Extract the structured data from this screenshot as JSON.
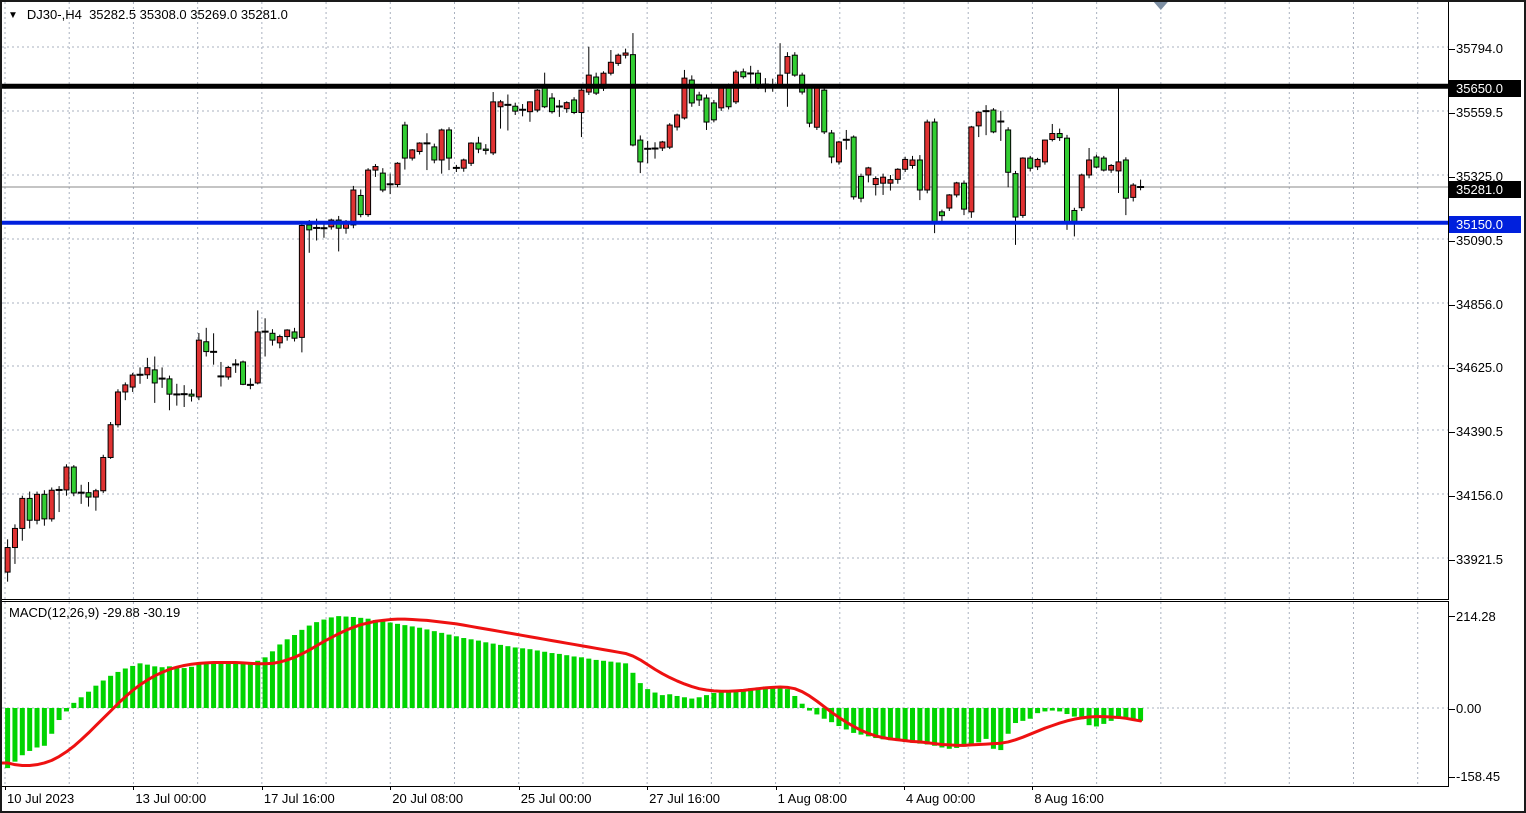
{
  "header": {
    "symbol_period": "DJ30-,H4",
    "ohlc": "35282.5 35308.0 35269.0 35281.0"
  },
  "indicator": {
    "label": "MACD(12,26,9) -29.88 -30.19"
  },
  "axis": {
    "price_labels": [
      "35794.0",
      "35559.5",
      "35325.0",
      "35090.5",
      "34856.0",
      "34625.0",
      "34390.5",
      "34156.0",
      "33921.5"
    ],
    "macd_labels": [
      "214.28",
      "0.00",
      "-158.45"
    ],
    "time_labels": [
      "10 Jul 2023",
      "13 Jul 00:00",
      "17 Jul 16:00",
      "20 Jul 08:00",
      "25 Jul 00:00",
      "27 Jul 16:00",
      "1 Aug 08:00",
      "4 Aug 00:00",
      "8 Aug 16:00"
    ]
  },
  "levels": {
    "resistance": {
      "value": "35650.0",
      "price": 35650,
      "color": "#000000"
    },
    "support": {
      "value": "35150.0",
      "price": 35150,
      "color": "#0020dd"
    },
    "current": {
      "value": "35281.0",
      "price": 35281,
      "color": "#888888"
    }
  },
  "chart_data": {
    "type": "candlestick",
    "title": "DJ30-,H4",
    "timeframe": "H4",
    "ylim": [
      33775,
      35864
    ],
    "grid": true,
    "x_labels": [
      "10 Jul 2023",
      "13 Jul 00:00",
      "17 Jul 16:00",
      "20 Jul 08:00",
      "25 Jul 00:00",
      "27 Jul 16:00",
      "1 Aug 08:00",
      "4 Aug 00:00",
      "8 Aug 16:00"
    ],
    "candles": [
      [
        33870,
        33990,
        33835,
        33960
      ],
      [
        33960,
        34045,
        33900,
        34030
      ],
      [
        34030,
        34150,
        33985,
        34140
      ],
      [
        34140,
        34165,
        34030,
        34060
      ],
      [
        34060,
        34165,
        34045,
        34155
      ],
      [
        34155,
        34170,
        34040,
        34065
      ],
      [
        34065,
        34180,
        34055,
        34170
      ],
      [
        34170,
        34185,
        34090,
        34171
      ],
      [
        34171,
        34265,
        34150,
        34255
      ],
      [
        34255,
        34262,
        34148,
        34160
      ],
      [
        34160,
        34190,
        34120,
        34161
      ],
      [
        34161,
        34200,
        34110,
        34145
      ],
      [
        34145,
        34175,
        34095,
        34168
      ],
      [
        34168,
        34300,
        34160,
        34290
      ],
      [
        34290,
        34420,
        34285,
        34410
      ],
      [
        34410,
        34540,
        34400,
        34530
      ],
      [
        34530,
        34565,
        34500,
        34556
      ],
      [
        34548,
        34600,
        34530,
        34592
      ],
      [
        34594,
        34620,
        34560,
        34593
      ],
      [
        34593,
        34655,
        34578,
        34619
      ],
      [
        34611,
        34660,
        34490,
        34563
      ],
      [
        34580,
        34620,
        34545,
        34579
      ],
      [
        34578,
        34590,
        34463,
        34522
      ],
      [
        34522,
        34560,
        34480,
        34521
      ],
      [
        34521,
        34555,
        34475,
        34522
      ],
      [
        34522,
        34540,
        34495,
        34515
      ],
      [
        34512,
        34746,
        34500,
        34720
      ],
      [
        34714,
        34765,
        34660,
        34678
      ],
      [
        34678,
        34745,
        34630,
        34677
      ],
      [
        34585,
        34640,
        34550,
        34587
      ],
      [
        34585,
        34625,
        34575,
        34620
      ],
      [
        34630,
        34650,
        34600,
        34631
      ],
      [
        34640,
        34645,
        34555,
        34558
      ],
      [
        34558,
        34580,
        34540,
        34556
      ],
      [
        34563,
        34829,
        34558,
        34750
      ],
      [
        34750,
        34800,
        34660,
        34751
      ],
      [
        34745,
        34760,
        34700,
        34720
      ],
      [
        34710,
        34740,
        34690,
        34733
      ],
      [
        34733,
        34760,
        34718,
        34757
      ],
      [
        34750,
        34765,
        34715,
        34727
      ],
      [
        34730,
        35155,
        34675,
        35140
      ],
      [
        35142,
        35160,
        35040,
        35124
      ],
      [
        35130,
        35165,
        35085,
        35131
      ],
      [
        35131,
        35155,
        35095,
        35130
      ],
      [
        35135,
        35165,
        35125,
        35160
      ],
      [
        35160,
        35175,
        35045,
        35130
      ],
      [
        35130,
        35160,
        35110,
        35155
      ],
      [
        35142,
        35285,
        35130,
        35270
      ],
      [
        35250,
        35272,
        35170,
        35180
      ],
      [
        35180,
        35350,
        35172,
        35343
      ],
      [
        35343,
        35365,
        35318,
        35356
      ],
      [
        35332,
        35350,
        35262,
        35270
      ],
      [
        35290,
        35330,
        35255,
        35291
      ],
      [
        35290,
        35372,
        35280,
        35368
      ],
      [
        35508,
        35520,
        35345,
        35387
      ],
      [
        35387,
        35420,
        35378,
        35417
      ],
      [
        35411,
        35445,
        35400,
        35442
      ],
      [
        35440,
        35478,
        35343,
        35441
      ],
      [
        35428,
        35440,
        35368,
        35380
      ],
      [
        35380,
        35495,
        35330,
        35490
      ],
      [
        35490,
        35500,
        35343,
        35387
      ],
      [
        35350,
        35362,
        35336,
        35351
      ],
      [
        35350,
        35385,
        35337,
        35380
      ],
      [
        35368,
        35445,
        35358,
        35442
      ],
      [
        35442,
        35465,
        35405,
        35420
      ],
      [
        35420,
        35438,
        35400,
        35415
      ],
      [
        35406,
        35629,
        35398,
        35593
      ],
      [
        35575,
        35600,
        35495,
        35593
      ],
      [
        35581,
        35620,
        35488,
        35582
      ],
      [
        35577,
        35590,
        35545,
        35559
      ],
      [
        35563,
        35585,
        35540,
        35564
      ],
      [
        35557,
        35595,
        35520,
        35593
      ],
      [
        35563,
        35640,
        35555,
        35636
      ],
      [
        35645,
        35700,
        35570,
        35575
      ],
      [
        35607,
        35625,
        35550,
        35557
      ],
      [
        35575,
        35600,
        35538,
        35576
      ],
      [
        35568,
        35595,
        35553,
        35590
      ],
      [
        35600,
        35610,
        35548,
        35554
      ],
      [
        35554,
        35645,
        35464,
        35636
      ],
      [
        35629,
        35795,
        35618,
        35691
      ],
      [
        35684,
        35700,
        35618,
        35625
      ],
      [
        35643,
        35705,
        35633,
        35698
      ],
      [
        35698,
        35783,
        35690,
        35738
      ],
      [
        35734,
        35770,
        35725,
        35764
      ],
      [
        35764,
        35788,
        35752,
        35772
      ],
      [
        35766,
        35845,
        35430,
        35435
      ],
      [
        35453,
        35470,
        35332,
        35373
      ],
      [
        35420,
        35450,
        35368,
        35421
      ],
      [
        35420,
        35445,
        35385,
        35422
      ],
      [
        35424,
        35450,
        35413,
        35446
      ],
      [
        35427,
        35515,
        35420,
        35508
      ],
      [
        35501,
        35550,
        35488,
        35545
      ],
      [
        35534,
        35710,
        35528,
        35680
      ],
      [
        35673,
        35690,
        35575,
        35589
      ],
      [
        35618,
        35630,
        35578,
        35600
      ],
      [
        35607,
        35620,
        35490,
        35519
      ],
      [
        35589,
        35600,
        35518,
        35527
      ],
      [
        35571,
        35650,
        35560,
        35644
      ],
      [
        35648,
        35660,
        35565,
        35575
      ],
      [
        35593,
        35710,
        35585,
        35702
      ],
      [
        35703,
        35715,
        35678,
        35685
      ],
      [
        35696,
        35725,
        35660,
        35697
      ],
      [
        35698,
        35710,
        35640,
        35648
      ],
      [
        35655,
        35680,
        35628,
        35656
      ],
      [
        35655,
        35678,
        35630,
        35654
      ],
      [
        35655,
        35808,
        35648,
        35691
      ],
      [
        35698,
        35775,
        35575,
        35759
      ],
      [
        35764,
        35775,
        35685,
        35691
      ],
      [
        35691,
        35700,
        35620,
        35629
      ],
      [
        35644,
        35650,
        35500,
        35515
      ],
      [
        35500,
        35655,
        35490,
        35644
      ],
      [
        35636,
        35645,
        35475,
        35483
      ],
      [
        35479,
        35490,
        35368,
        35391
      ],
      [
        35373,
        35450,
        35363,
        35446
      ],
      [
        35453,
        35490,
        35418,
        35454
      ],
      [
        35464,
        35470,
        35235,
        35245
      ],
      [
        35320,
        35330,
        35225,
        35240
      ],
      [
        35325,
        35355,
        35298,
        35351
      ],
      [
        35290,
        35320,
        35250,
        35312
      ],
      [
        35295,
        35330,
        35252,
        35317
      ],
      [
        35295,
        35325,
        35268,
        35308
      ],
      [
        35309,
        35350,
        35293,
        35346
      ],
      [
        35346,
        35392,
        35336,
        35382
      ],
      [
        35360,
        35395,
        35348,
        35380
      ],
      [
        35380,
        35398,
        35233,
        35270
      ],
      [
        35270,
        35528,
        35258,
        35519
      ],
      [
        35519,
        35532,
        35112,
        35153
      ],
      [
        35190,
        35198,
        35150,
        35176
      ],
      [
        35204,
        35255,
        35193,
        35252
      ],
      [
        35252,
        35300,
        35243,
        35296
      ],
      [
        35295,
        35305,
        35178,
        35200
      ],
      [
        35190,
        35505,
        35168,
        35501
      ],
      [
        35505,
        35558,
        35464,
        35555
      ],
      [
        35560,
        35581,
        35471,
        35559
      ],
      [
        35563,
        35570,
        35478,
        35483
      ],
      [
        35520,
        35560,
        35450,
        35521
      ],
      [
        35490,
        35500,
        35280,
        35335
      ],
      [
        35330,
        35340,
        35069,
        35171
      ],
      [
        35177,
        35390,
        35168,
        35387
      ],
      [
        35387,
        35395,
        35338,
        35350
      ],
      [
        35355,
        35388,
        35343,
        35382
      ],
      [
        35373,
        35455,
        35363,
        35453
      ],
      [
        35455,
        35512,
        35448,
        35477
      ],
      [
        35477,
        35495,
        35450,
        35462
      ],
      [
        35460,
        35472,
        35124,
        35148
      ],
      [
        35195,
        35205,
        35100,
        35155
      ],
      [
        35205,
        35330,
        35193,
        35325
      ],
      [
        35325,
        35424,
        35313,
        35380
      ],
      [
        35391,
        35400,
        35350,
        35354
      ],
      [
        35387,
        35395,
        35338,
        35343
      ],
      [
        35343,
        35365,
        35333,
        35360
      ],
      [
        35340,
        35644,
        35259,
        35373
      ],
      [
        35380,
        35390,
        35178,
        35240
      ],
      [
        35243,
        35295,
        35228,
        35288
      ],
      [
        35282.5,
        35308,
        35269,
        35281
      ]
    ],
    "macd": {
      "params": "12,26,9",
      "last_macd": -29.88,
      "last_signal": -30.19,
      "y_range": [
        -158.45,
        214.28
      ],
      "histogram": [
        -140,
        -125,
        -110,
        -100,
        -92,
        -88,
        -60,
        -28,
        -8,
        12,
        25,
        38,
        52,
        64,
        75,
        84,
        92,
        98,
        104,
        101,
        97,
        95,
        97,
        94,
        93,
        96,
        102,
        107,
        105,
        103,
        105,
        108,
        106,
        104,
        110,
        118,
        132,
        148,
        160,
        170,
        182,
        192,
        200,
        206,
        211,
        214,
        213,
        212,
        210,
        208,
        205,
        202,
        199,
        196,
        193,
        190,
        187,
        183,
        179,
        175,
        171,
        167,
        163,
        160,
        157,
        153,
        150,
        147,
        144,
        141,
        139,
        137,
        134,
        131,
        128,
        126,
        123,
        120,
        118,
        115,
        112,
        110,
        108,
        106,
        104,
        82,
        58,
        44,
        36,
        30,
        32,
        28,
        25,
        22,
        25,
        30,
        35,
        38,
        40,
        42,
        44,
        46,
        48,
        50,
        50,
        48,
        44,
        28,
        10,
        -6,
        -15,
        -25,
        -33,
        -42,
        -50,
        -58,
        -62,
        -66,
        -70,
        -73,
        -75,
        -77,
        -79,
        -81,
        -83,
        -85,
        -88,
        -92,
        -95,
        -93,
        -90,
        -86,
        -80,
        -72,
        -95,
        -98,
        -60,
        -35,
        -30,
        -25,
        -12,
        -8,
        -6,
        -8,
        -14,
        -20,
        -26,
        -40,
        -43,
        -37,
        -30,
        -24,
        -26,
        -28,
        -29.88
      ],
      "signal": [
        -128,
        -132,
        -134,
        -134,
        -132,
        -128,
        -122,
        -113,
        -102,
        -89,
        -74,
        -58,
        -41,
        -24,
        -7,
        10,
        26,
        41,
        54,
        65,
        75,
        83,
        90,
        95,
        99,
        102,
        104,
        105,
        106,
        106,
        106,
        106,
        105,
        104,
        103,
        103,
        104,
        107,
        112,
        118,
        126,
        135,
        145,
        155,
        164,
        173,
        181,
        188,
        194,
        198,
        202,
        204,
        206,
        207,
        207,
        206,
        205,
        204,
        202,
        200,
        198,
        196,
        193,
        190,
        187,
        184,
        181,
        178,
        175,
        172,
        169,
        166,
        163,
        160,
        157,
        154,
        151,
        148,
        145,
        142,
        139,
        136,
        133,
        130,
        127,
        121,
        112,
        101,
        90,
        80,
        71,
        63,
        56,
        50,
        45,
        42,
        40,
        39,
        39,
        40,
        41,
        43,
        45,
        47,
        48,
        49,
        48,
        45,
        38,
        28,
        16,
        3,
        -10,
        -22,
        -33,
        -43,
        -52,
        -59,
        -65,
        -69,
        -72,
        -74,
        -76,
        -78,
        -79,
        -81,
        -83,
        -85,
        -86,
        -87,
        -87,
        -86,
        -85,
        -84,
        -83,
        -82,
        -79,
        -74,
        -68,
        -61,
        -54,
        -47,
        -41,
        -35,
        -30,
        -26,
        -23,
        -21,
        -20,
        -20,
        -21,
        -22,
        -24,
        -27,
        -30.19
      ]
    },
    "colors": {
      "bull": "#e03232",
      "bear": "#32cd32",
      "doji": "#000000",
      "wick": "#000000",
      "macd_hist": "#00d400",
      "macd_signal": "#ee1111",
      "grid": "#a9b1bf",
      "resistance_line": "#000000",
      "support_line": "#0020dd",
      "current_line": "#888888",
      "shift_marker": "#7d8fa3"
    }
  }
}
